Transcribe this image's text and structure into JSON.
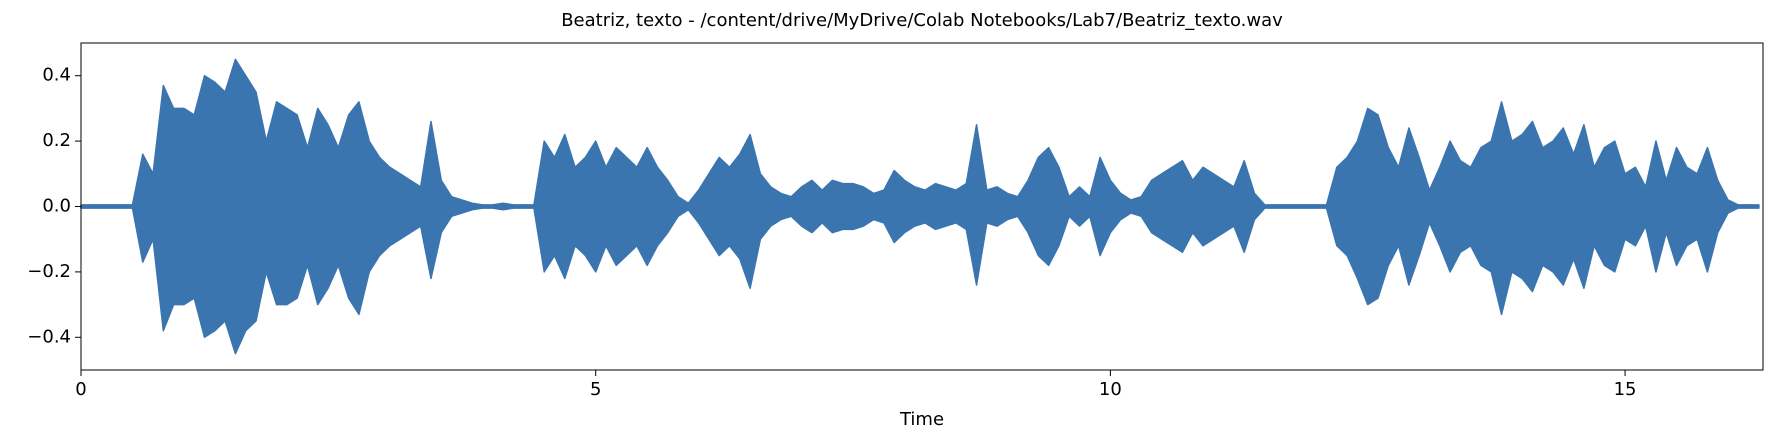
{
  "chart_data": {
    "type": "waveform",
    "title": "Beatriz, texto -  /content/drive/MyDrive/Colab Notebooks/Lab7/Beatriz_texto.wav",
    "x_label": "Time",
    "color": "#3a75b0",
    "xlim": [
      0,
      16.34
    ],
    "xticks": [
      0,
      5,
      10,
      15
    ],
    "ylim": [
      -0.5,
      0.5
    ],
    "yticks": [
      {
        "value": 0.4,
        "label": "0.4"
      },
      {
        "value": 0.2,
        "label": "0.2"
      },
      {
        "value": 0,
        "label": "0.0"
      },
      {
        "value": -0.2,
        "label": "−0.2"
      },
      {
        "value": -0.4,
        "label": "−0.4"
      }
    ],
    "x": [
      0,
      0.1,
      0.2,
      0.3,
      0.4,
      0.5,
      0.6,
      0.7,
      0.8,
      0.9,
      1,
      1.1,
      1.2,
      1.3,
      1.4,
      1.5,
      1.6,
      1.7,
      1.8,
      1.9,
      2,
      2.1,
      2.2,
      2.3,
      2.4,
      2.5,
      2.6,
      2.7,
      2.8,
      2.9,
      3,
      3.1,
      3.2,
      3.3,
      3.4,
      3.5,
      3.6,
      3.7,
      3.8,
      3.9,
      4,
      4.1,
      4.2,
      4.3,
      4.4,
      4.5,
      4.6,
      4.7,
      4.8,
      4.9,
      5,
      5.1,
      5.2,
      5.3,
      5.4,
      5.5,
      5.6,
      5.7,
      5.8,
      5.9,
      6,
      6.1,
      6.2,
      6.3,
      6.4,
      6.5,
      6.6,
      6.7,
      6.8,
      6.9,
      7,
      7.1,
      7.2,
      7.3,
      7.4,
      7.5,
      7.6,
      7.7,
      7.8,
      7.9,
      8,
      8.1,
      8.2,
      8.3,
      8.4,
      8.5,
      8.6,
      8.7,
      8.8,
      8.9,
      9,
      9.1,
      9.2,
      9.3,
      9.4,
      9.5,
      9.6,
      9.7,
      9.8,
      9.9,
      10,
      10.1,
      10.2,
      10.3,
      10.4,
      10.5,
      10.6,
      10.7,
      10.8,
      10.9,
      11,
      11.1,
      11.2,
      11.3,
      11.4,
      11.5,
      11.6,
      11.7,
      11.8,
      11.9,
      12,
      12.1,
      12.2,
      12.3,
      12.4,
      12.5,
      12.6,
      12.7,
      12.8,
      12.9,
      13,
      13.1,
      13.2,
      13.3,
      13.4,
      13.5,
      13.6,
      13.7,
      13.8,
      13.9,
      14,
      14.1,
      14.2,
      14.3,
      14.4,
      14.5,
      14.6,
      14.7,
      14.8,
      14.9,
      15,
      15.1,
      15.2,
      15.3,
      15.4,
      15.5,
      15.6,
      15.7,
      15.8,
      15.9,
      16,
      16.1,
      16.2,
      16.3
    ],
    "max": [
      0.005,
      0.005,
      0.005,
      0.005,
      0.005,
      0.005,
      0.16,
      0.1,
      0.37,
      0.3,
      0.3,
      0.28,
      0.4,
      0.38,
      0.35,
      0.45,
      0.4,
      0.35,
      0.2,
      0.32,
      0.3,
      0.28,
      0.18,
      0.3,
      0.25,
      0.18,
      0.28,
      0.32,
      0.2,
      0.15,
      0.12,
      0.1,
      0.08,
      0.06,
      0.26,
      0.08,
      0.03,
      0.02,
      0.01,
      0.005,
      0.005,
      0.01,
      0.005,
      0.005,
      0.005,
      0.2,
      0.15,
      0.22,
      0.12,
      0.15,
      0.2,
      0.12,
      0.18,
      0.15,
      0.12,
      0.18,
      0.12,
      0.08,
      0.03,
      0.01,
      0.05,
      0.1,
      0.15,
      0.12,
      0.16,
      0.22,
      0.1,
      0.06,
      0.04,
      0.03,
      0.06,
      0.08,
      0.05,
      0.08,
      0.07,
      0.07,
      0.06,
      0.04,
      0.05,
      0.11,
      0.08,
      0.06,
      0.05,
      0.07,
      0.06,
      0.05,
      0.07,
      0.25,
      0.05,
      0.06,
      0.04,
      0.03,
      0.08,
      0.15,
      0.18,
      0.12,
      0.03,
      0.06,
      0.03,
      0.15,
      0.08,
      0.04,
      0.02,
      0.03,
      0.08,
      0.1,
      0.12,
      0.14,
      0.08,
      0.12,
      0.1,
      0.08,
      0.06,
      0.14,
      0.04,
      0.005,
      0.005,
      0.005,
      0.005,
      0.005,
      0.005,
      0.005,
      0.12,
      0.15,
      0.2,
      0.3,
      0.28,
      0.18,
      0.12,
      0.24,
      0.15,
      0.05,
      0.12,
      0.2,
      0.14,
      0.12,
      0.18,
      0.2,
      0.32,
      0.2,
      0.22,
      0.26,
      0.18,
      0.2,
      0.24,
      0.16,
      0.25,
      0.12,
      0.18,
      0.2,
      0.1,
      0.12,
      0.06,
      0.2,
      0.08,
      0.18,
      0.12,
      0.1,
      0.18,
      0.08,
      0.02,
      0.005,
      0.005,
      0.005
    ],
    "min": [
      -0.005,
      -0.005,
      -0.005,
      -0.005,
      -0.005,
      -0.005,
      -0.17,
      -0.1,
      -0.38,
      -0.3,
      -0.3,
      -0.28,
      -0.4,
      -0.38,
      -0.35,
      -0.45,
      -0.38,
      -0.35,
      -0.2,
      -0.3,
      -0.3,
      -0.28,
      -0.18,
      -0.3,
      -0.25,
      -0.18,
      -0.28,
      -0.33,
      -0.2,
      -0.15,
      -0.12,
      -0.1,
      -0.08,
      -0.06,
      -0.22,
      -0.08,
      -0.03,
      -0.02,
      -0.01,
      -0.005,
      -0.005,
      -0.01,
      -0.005,
      -0.005,
      -0.005,
      -0.2,
      -0.15,
      -0.22,
      -0.12,
      -0.15,
      -0.2,
      -0.12,
      -0.18,
      -0.15,
      -0.12,
      -0.18,
      -0.12,
      -0.08,
      -0.03,
      -0.01,
      -0.05,
      -0.1,
      -0.15,
      -0.12,
      -0.16,
      -0.25,
      -0.1,
      -0.06,
      -0.04,
      -0.03,
      -0.06,
      -0.08,
      -0.05,
      -0.08,
      -0.07,
      -0.07,
      -0.06,
      -0.04,
      -0.05,
      -0.11,
      -0.08,
      -0.06,
      -0.05,
      -0.07,
      -0.06,
      -0.05,
      -0.07,
      -0.24,
      -0.05,
      -0.06,
      -0.04,
      -0.03,
      -0.08,
      -0.15,
      -0.18,
      -0.12,
      -0.03,
      -0.06,
      -0.03,
      -0.15,
      -0.08,
      -0.04,
      -0.02,
      -0.03,
      -0.08,
      -0.1,
      -0.12,
      -0.14,
      -0.08,
      -0.12,
      -0.1,
      -0.08,
      -0.06,
      -0.14,
      -0.04,
      -0.005,
      -0.005,
      -0.005,
      -0.005,
      -0.005,
      -0.005,
      -0.005,
      -0.12,
      -0.15,
      -0.22,
      -0.3,
      -0.28,
      -0.18,
      -0.12,
      -0.24,
      -0.15,
      -0.05,
      -0.12,
      -0.2,
      -0.14,
      -0.12,
      -0.18,
      -0.2,
      -0.33,
      -0.2,
      -0.22,
      -0.26,
      -0.18,
      -0.2,
      -0.24,
      -0.16,
      -0.25,
      -0.12,
      -0.18,
      -0.2,
      -0.1,
      -0.12,
      -0.06,
      -0.2,
      -0.08,
      -0.18,
      -0.12,
      -0.1,
      -0.2,
      -0.08,
      -0.02,
      -0.005,
      -0.005,
      -0.005
    ]
  }
}
